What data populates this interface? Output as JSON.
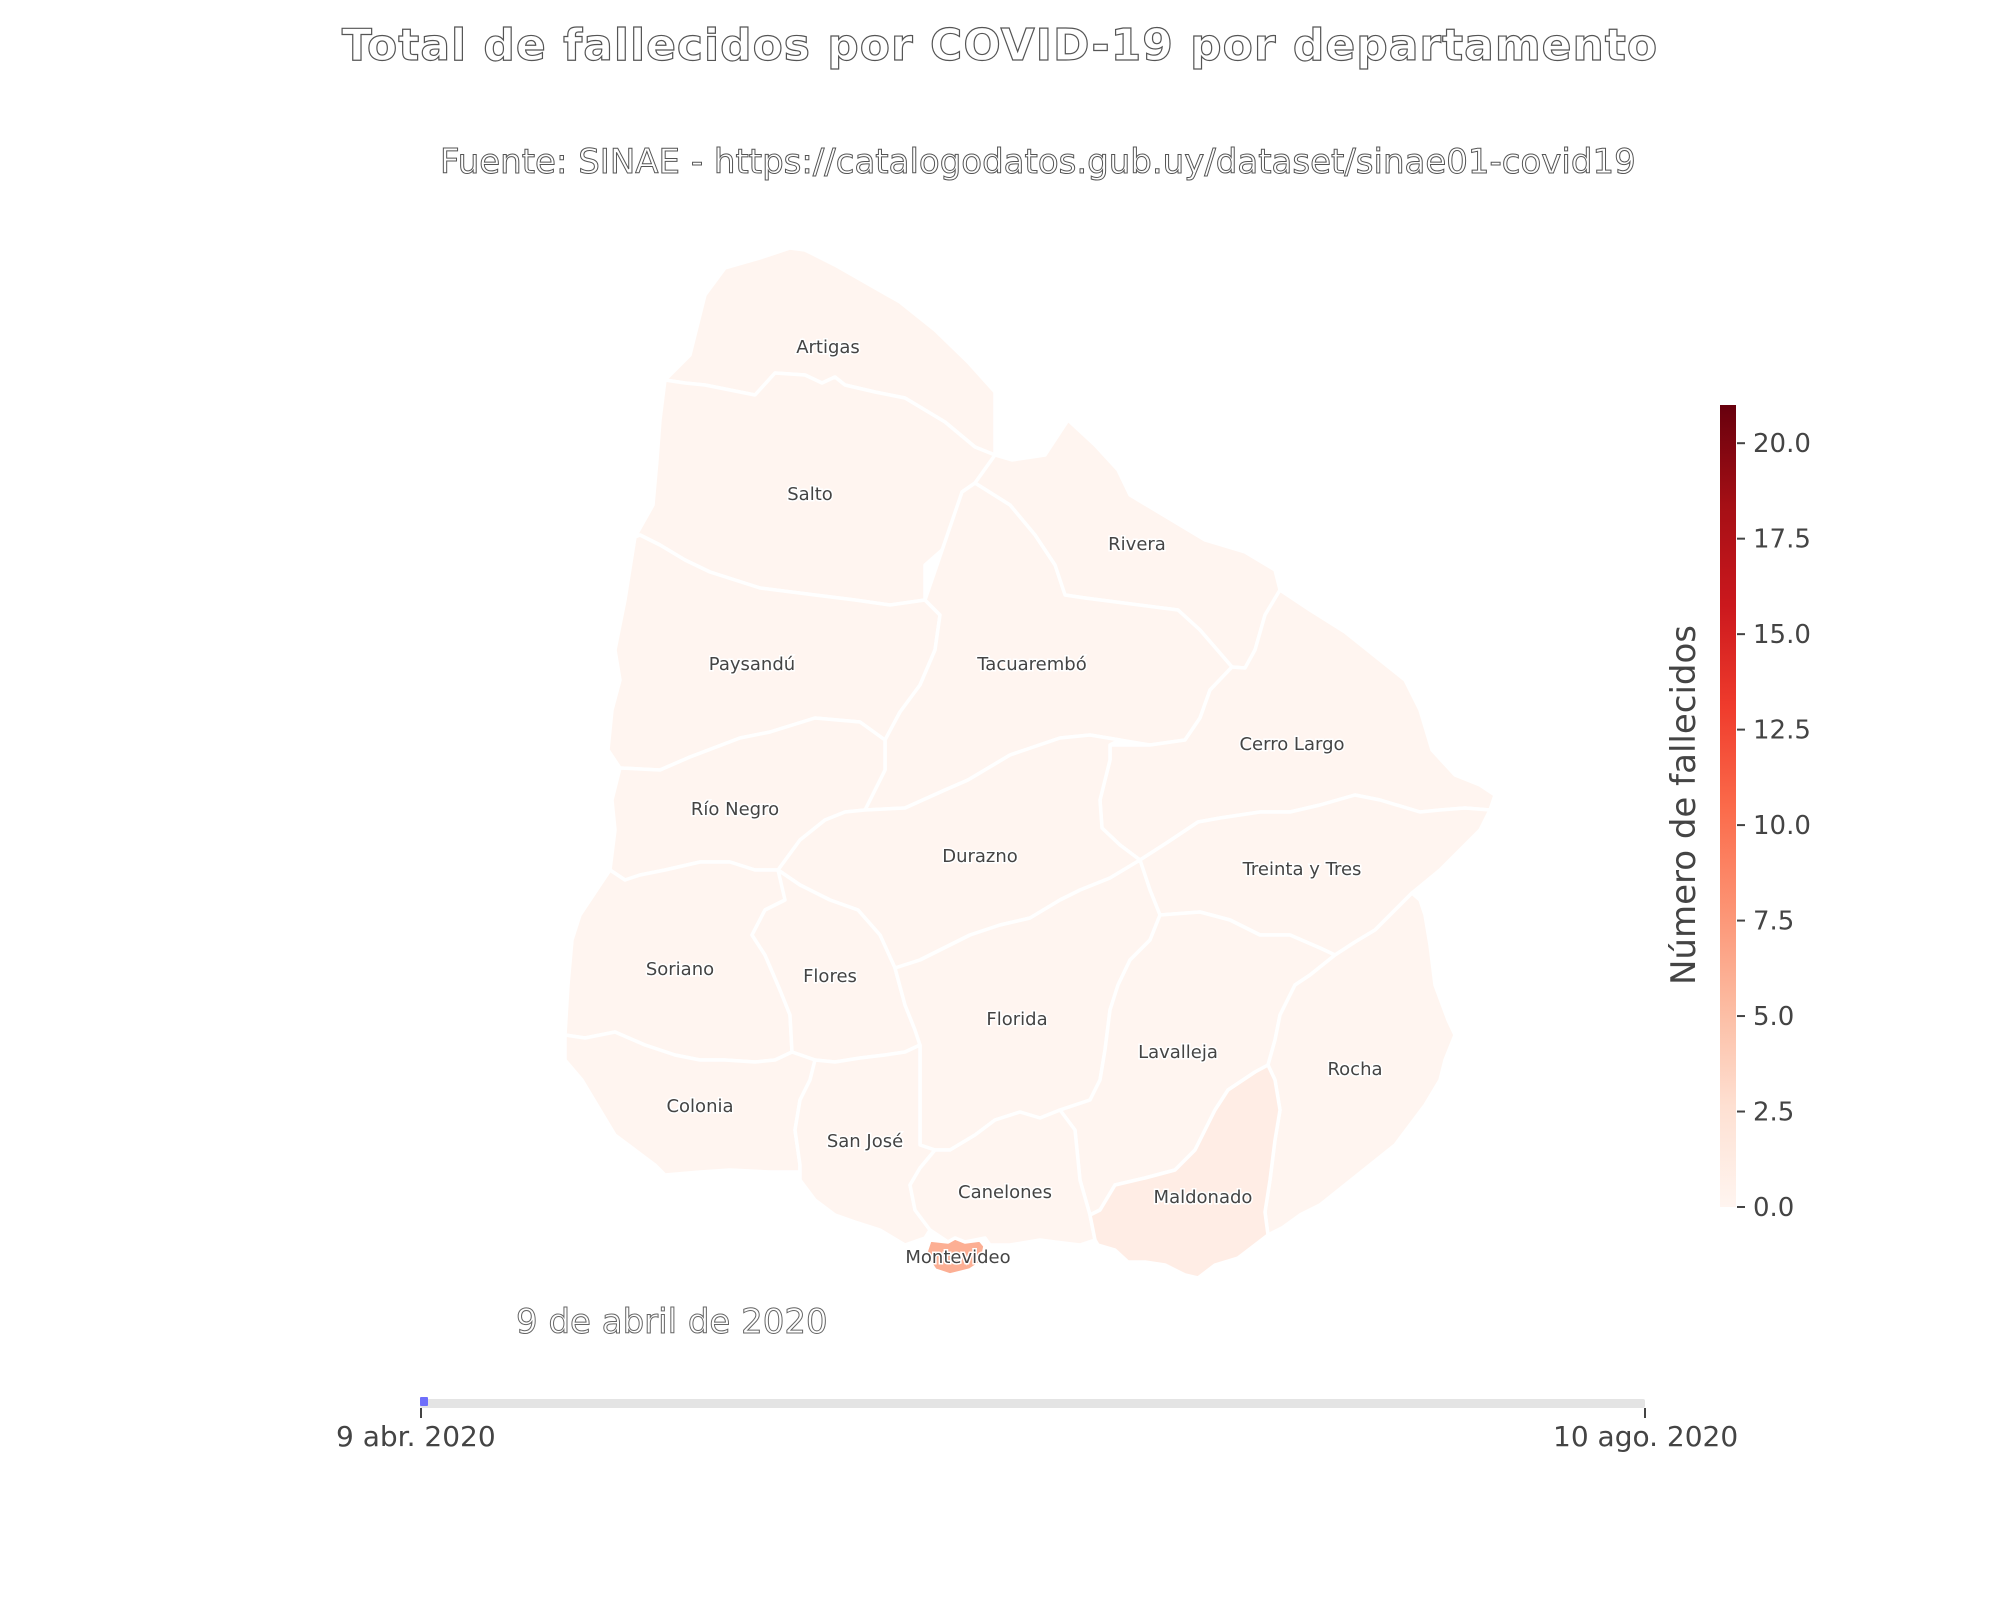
{
  "title": "Total de fallecidos por COVID-19 por departamento",
  "subtitle": "Fuente: SINAE - https://catalogodatos.gub.uy/dataset/sinae01-covid19",
  "date_label": "9 de abril de 2020",
  "slider": {
    "start_label": "9 abr. 2020",
    "end_label": "10 ago. 2020",
    "position": 0
  },
  "colorbar": {
    "title": "Número de fallecidos",
    "min": 0,
    "max": 21,
    "ticks": [
      "0.0",
      "2.5",
      "5.0",
      "7.5",
      "10.0",
      "12.5",
      "15.0",
      "17.5",
      "20.0"
    ],
    "tick_values": [
      0,
      2.5,
      5,
      7.5,
      10,
      12.5,
      15,
      17.5,
      20
    ],
    "colorscale": [
      "#fff5f0",
      "#fee0d2",
      "#fcbba1",
      "#fc9272",
      "#fb6a4a",
      "#ef3b2c",
      "#cb181d",
      "#a50f15",
      "#67000d"
    ]
  },
  "chart_data": {
    "type": "choropleth",
    "title": "Total de fallecidos por COVID-19 por departamento",
    "value_label": "Número de fallecidos",
    "date": "9 de abril de 2020",
    "departments": [
      {
        "name": "Artigas",
        "value": 0
      },
      {
        "name": "Salto",
        "value": 0
      },
      {
        "name": "Rivera",
        "value": 0
      },
      {
        "name": "Paysandú",
        "value": 0
      },
      {
        "name": "Tacuarembó",
        "value": 0
      },
      {
        "name": "Cerro Largo",
        "value": 0
      },
      {
        "name": "Río Negro",
        "value": 0
      },
      {
        "name": "Durazno",
        "value": 0
      },
      {
        "name": "Treinta y Tres",
        "value": 0
      },
      {
        "name": "Soriano",
        "value": 0
      },
      {
        "name": "Flores",
        "value": 0
      },
      {
        "name": "Florida",
        "value": 0
      },
      {
        "name": "Lavalleja",
        "value": 0
      },
      {
        "name": "Rocha",
        "value": 0
      },
      {
        "name": "Colonia",
        "value": 0
      },
      {
        "name": "San José",
        "value": 0
      },
      {
        "name": "Canelones",
        "value": 0
      },
      {
        "name": "Maldonado",
        "value": 1
      },
      {
        "name": "Montevideo",
        "value": 6
      }
    ]
  }
}
